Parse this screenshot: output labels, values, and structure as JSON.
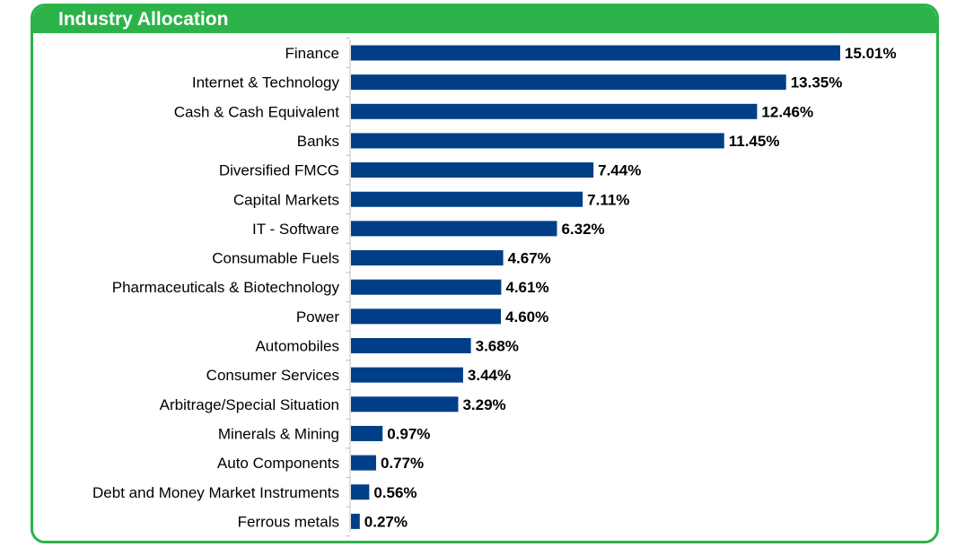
{
  "header": {
    "title": "Industry Allocation"
  },
  "colors": {
    "accent": "#2bb34a",
    "bar": "#003f87",
    "axis": "#bfbfbf",
    "text": "#000000"
  },
  "chart_data": {
    "type": "bar",
    "orientation": "horizontal",
    "title": "Industry Allocation",
    "xlabel": "",
    "ylabel": "",
    "xlim": [
      0,
      15.01
    ],
    "grid": false,
    "legend": "none",
    "categories": [
      "Finance",
      "Internet & Technology",
      "Cash & Cash Equivalent",
      "Banks",
      "Diversified FMCG",
      "Capital Markets",
      "IT - Software",
      "Consumable Fuels",
      "Pharmaceuticals & Biotechnology",
      "Power",
      "Automobiles",
      "Consumer Services",
      "Arbitrage/Special Situation",
      "Minerals & Mining",
      "Auto Components",
      "Debt and Money Market Instruments",
      "Ferrous metals"
    ],
    "values": [
      15.01,
      13.35,
      12.46,
      11.45,
      7.44,
      7.11,
      6.32,
      4.67,
      4.61,
      4.6,
      3.68,
      3.44,
      3.29,
      0.97,
      0.77,
      0.56,
      0.27
    ],
    "value_labels": [
      "15.01%",
      "13.35%",
      "12.46%",
      "11.45%",
      "7.44%",
      "7.11%",
      "6.32%",
      "4.67%",
      "4.61%",
      "4.60%",
      "3.68%",
      "3.44%",
      "3.29%",
      "0.97%",
      "0.77%",
      "0.56%",
      "0.27%"
    ]
  }
}
